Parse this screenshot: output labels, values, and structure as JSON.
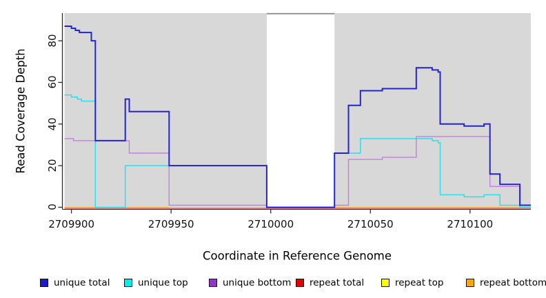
{
  "figure": {
    "background": "#FFFFFF",
    "panel_color": "#D8D8D8",
    "gap_border_color": "#8F8F8F",
    "axis_color": "#2B2B2B",
    "text_color": "#111111"
  },
  "chart_data": {
    "type": "line",
    "step": true,
    "title": "",
    "xlabel": "Coordinate in Reference Genome",
    "ylabel": "Read Coverage Depth",
    "xlim": [
      2709896.5,
      2710130.5
    ],
    "ylim": [
      -1,
      93.3
    ],
    "x_ticks": [
      2709900,
      2709950,
      2710000,
      2710050,
      2710100
    ],
    "y_ticks": [
      0,
      20,
      40,
      60,
      80
    ],
    "grid": false,
    "legend_position": "bottom",
    "shaded_regions": [
      [
        2709896.5,
        2709998
      ],
      [
        2710032,
        2710130.5
      ]
    ],
    "gap_region": [
      2709998,
      2710032
    ],
    "series": [
      {
        "name": "unique total",
        "color": "#2323D2",
        "segments": [
          [
            [
              2709896,
              87
            ],
            [
              2709900,
              86
            ],
            [
              2709902,
              85
            ],
            [
              2709904,
              84
            ],
            [
              2709910,
              80
            ],
            [
              2709912,
              32
            ],
            [
              2709927,
              52
            ],
            [
              2709929,
              46
            ],
            [
              2709949,
              20
            ],
            [
              2709998,
              0
            ],
            [
              2710032,
              26
            ],
            [
              2710039,
              49
            ],
            [
              2710045,
              56
            ],
            [
              2710056,
              57
            ],
            [
              2710073,
              67
            ],
            [
              2710081,
              66
            ],
            [
              2710084,
              65
            ],
            [
              2710085,
              40
            ],
            [
              2710097,
              39
            ],
            [
              2710107,
              40
            ],
            [
              2710110,
              16
            ],
            [
              2710115,
              11
            ],
            [
              2710125,
              1
            ],
            [
              2710131,
              1
            ]
          ]
        ]
      },
      {
        "name": "unique top",
        "color": "#2EDCEC",
        "segments": [
          [
            [
              2709896,
              54
            ],
            [
              2709900,
              53
            ],
            [
              2709903,
              52
            ],
            [
              2709905,
              51
            ],
            [
              2709912,
              0
            ],
            [
              2709927,
              20
            ],
            [
              2709998,
              0
            ],
            [
              2710032,
              26
            ],
            [
              2710045,
              33
            ],
            [
              2710081,
              32
            ],
            [
              2710084,
              31
            ],
            [
              2710085,
              6
            ],
            [
              2710097,
              5
            ],
            [
              2710107,
              6
            ],
            [
              2710115,
              1
            ],
            [
              2710125,
              0
            ],
            [
              2710131,
              0
            ]
          ]
        ]
      },
      {
        "name": "unique bottom",
        "color": "#C47FDC",
        "segments": [
          [
            [
              2709896,
              33
            ],
            [
              2709901,
              32
            ],
            [
              2709929,
              26
            ],
            [
              2709949,
              1
            ],
            [
              2709998,
              0
            ],
            [
              2710032,
              1
            ],
            [
              2710039,
              23
            ],
            [
              2710056,
              24
            ],
            [
              2710073,
              34
            ],
            [
              2710110,
              10
            ],
            [
              2710125,
              1
            ],
            [
              2710131,
              1
            ]
          ]
        ]
      },
      {
        "name": "repeat total",
        "color": "#E25555",
        "segments": [
          [
            [
              2709896,
              0
            ],
            [
              2710131,
              0
            ]
          ]
        ]
      },
      {
        "name": "repeat top",
        "color": "#F2F200",
        "segments": [
          [
            [
              2709896,
              0
            ],
            [
              2709949,
              0
            ]
          ],
          [
            [
              2710032,
              0
            ],
            [
              2710131,
              0
            ]
          ]
        ]
      },
      {
        "name": "repeat bottom",
        "color": "#FFA000",
        "segments": [
          [
            [
              2709896,
              0
            ],
            [
              2709949,
              0
            ]
          ],
          [
            [
              2710032,
              0
            ],
            [
              2710131,
              0
            ]
          ]
        ]
      }
    ]
  },
  "legend": {
    "items": [
      {
        "label": "unique total",
        "color": "#1A1ACD"
      },
      {
        "label": "unique top",
        "color": "#00EEEE"
      },
      {
        "label": "unique bottom",
        "color": "#9932CC"
      },
      {
        "label": "repeat total",
        "color": "#E00000"
      },
      {
        "label": "repeat top",
        "color": "#FFFF00"
      },
      {
        "label": "repeat bottom",
        "color": "#FFA500"
      }
    ]
  }
}
